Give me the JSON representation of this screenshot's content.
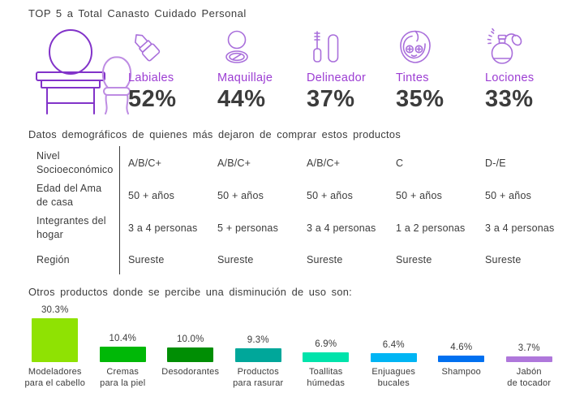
{
  "page_title": "TOP 5 a Total Canasto Cuidado Personal",
  "colors": {
    "text_dark": "#3c3c3c",
    "category_purple": "#9c3dd3",
    "icon_purple": "#a96fdb",
    "vanity_dark_purple": "#8233c9",
    "vanity_light_purple": "#be8ce3"
  },
  "chart_data": [
    {
      "type": "bar",
      "title": "TOP 5 a Total Canasto Cuidado Personal",
      "categories": [
        "Labiales",
        "Maquillaje",
        "Delineador",
        "Tintes",
        "Lociones"
      ],
      "values": [
        52,
        44,
        37,
        35,
        33
      ],
      "value_labels": [
        "52%",
        "44%",
        "37%",
        "35%",
        "33%"
      ],
      "icons": [
        "lipstick-icon",
        "compact-mirror-icon",
        "mascara-icon",
        "face-mask-icon",
        "perfume-atomizer-icon"
      ],
      "unit": "%",
      "legend": false
    },
    {
      "type": "table",
      "title": "Datos demográficos  de quienes más dejaron de comprar estos productos",
      "row_labels": [
        "Nivel Socioeconómico",
        "Edad del Ama de casa",
        "Integrantes del hogar",
        "Región"
      ],
      "rows": [
        [
          "A/B/C+",
          "A/B/C+",
          "A/B/C+",
          "C",
          "D-/E"
        ],
        [
          "50 + años",
          "50 + años",
          "50 + años",
          "50 + años",
          "50 + años"
        ],
        [
          "3 a 4 personas",
          "5 + personas",
          "3 a 4 personas",
          "1 a 2 personas",
          "3 a 4 personas"
        ],
        [
          "Sureste",
          "Sureste",
          "Sureste",
          "Sureste",
          "Sureste"
        ]
      ]
    },
    {
      "type": "bar",
      "title": "Otros productos  donde se percibe una disminución  de uso son:",
      "categories": [
        "Modeladores para el cabello",
        "Cremas para la piel",
        "Desodorantes",
        "Productos para rasurar",
        "Toallitas húmedas",
        "Enjuagues bucales",
        "Shampoo",
        "Jabón de tocador"
      ],
      "categories_lines": [
        [
          "Modeladores",
          "para el cabello"
        ],
        [
          "Cremas",
          "para la piel"
        ],
        [
          "Desodorantes"
        ],
        [
          "Productos",
          "para rasurar"
        ],
        [
          "Toallitas",
          "húmedas"
        ],
        [
          "Enjuagues",
          "bucales"
        ],
        [
          "Shampoo"
        ],
        [
          "Jabón",
          "de tocador"
        ]
      ],
      "values": [
        30.3,
        10.4,
        10.0,
        9.3,
        6.9,
        6.4,
        4.6,
        3.7
      ],
      "value_labels": [
        "30.3%",
        "10.4%",
        "10.0%",
        "9.3%",
        "6.9%",
        "6.4%",
        "4.6%",
        "3.7%"
      ],
      "bar_colors": [
        "#8FE203",
        "#00B807",
        "#008E04",
        "#00A79A",
        "#00E3AB",
        "#00B5F4",
        "#0070F0",
        "#AF77DB"
      ],
      "ylim": [
        0,
        32
      ],
      "grid": false,
      "legend": false
    }
  ]
}
